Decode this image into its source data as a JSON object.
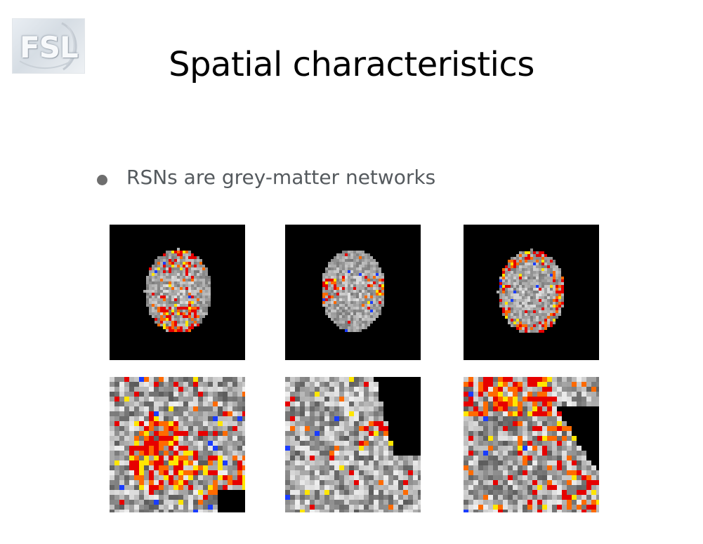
{
  "slide": {
    "title": "Spatial characteristics",
    "logo_text": "FSL",
    "bullets": [
      "RSNs are grey-matter networks"
    ]
  },
  "figure": {
    "rows": [
      {
        "row": "top",
        "view": "axial brain slice",
        "panels": 3
      },
      {
        "row": "bottom",
        "view": "zoomed detail",
        "panels": 3
      }
    ],
    "overlay_colors": {
      "positive_low": "#e60000",
      "positive_mid": "#ff6a00",
      "positive_high": "#ffe600",
      "negative": "#1a3cff"
    },
    "background": "#000000"
  }
}
